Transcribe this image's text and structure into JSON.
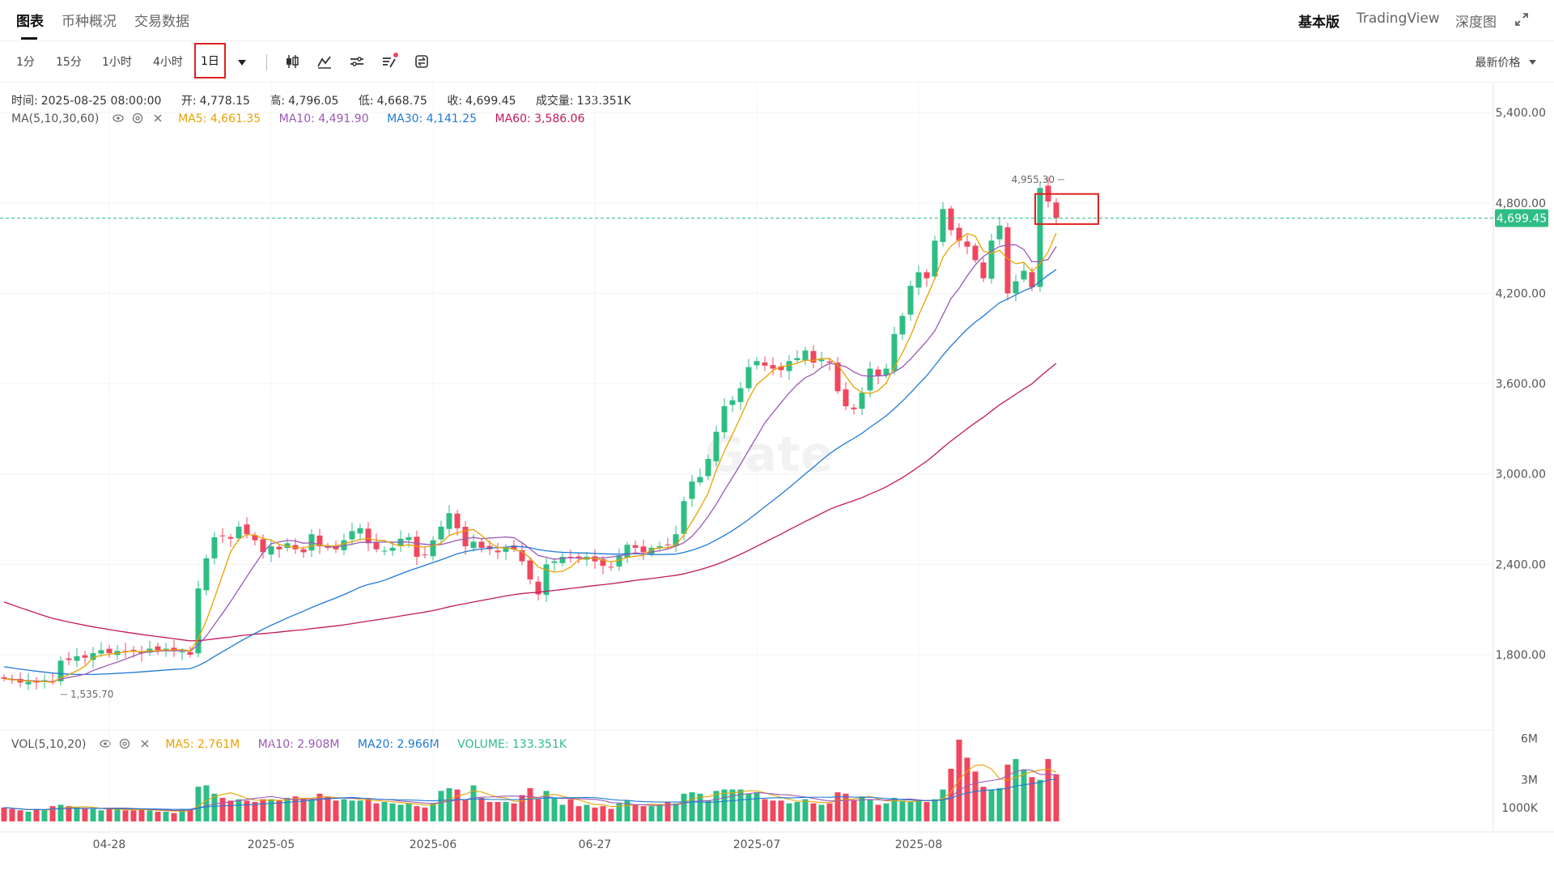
{
  "tabs": {
    "left": [
      "图表",
      "币种概况",
      "交易数据"
    ],
    "active": "图表",
    "right": [
      "基本版",
      "TradingView",
      "深度图"
    ],
    "right_active": "基本版"
  },
  "toolbar": {
    "intervals": [
      "1分",
      "15分",
      "1小时",
      "4小时",
      "1日"
    ],
    "selected_interval": "1日",
    "price_type": "最新价格",
    "icons": [
      "candlestick-icon",
      "indicator-icon",
      "settings-icon",
      "drawing-icon",
      "swap-icon"
    ]
  },
  "ohlc": {
    "time_label": "时间:",
    "time": "2025-08-25 08:00:00",
    "open_label": "开:",
    "open": "4,778.15",
    "high_label": "高:",
    "high": "4,796.05",
    "low_label": "低:",
    "low": "4,668.75",
    "close_label": "收:",
    "close": "4,699.45",
    "vol_label": "成交量:",
    "vol": "133.351K"
  },
  "ma_legend": {
    "name": "MA(5,10,30,60)",
    "ma5": "MA5: 4,661.35",
    "ma10": "MA10: 4,491.90",
    "ma30": "MA30: 4,141.25",
    "ma60": "MA60: 3,586.06"
  },
  "vol_legend": {
    "name": "VOL(5,10,20)",
    "ma5": "MA5: 2.761M",
    "ma10": "MA10: 2.908M",
    "ma20": "MA20: 2.966M",
    "volume": "VOLUME: 133.351K"
  },
  "colors": {
    "up": "#2ebd85",
    "down": "#f0475e",
    "ma5": "#e8a200",
    "ma10": "#9b59b6",
    "ma30": "#1e7ad6",
    "ma60": "#c2185b",
    "current_price_line": "#2ebd85"
  },
  "chart_data": {
    "type": "candlestick",
    "ylim": [
      1300,
      5600
    ],
    "y_ticks": [
      "5,400.00",
      "4,800.00",
      "4,200.00",
      "3,600.00",
      "3,000.00",
      "2,400.00",
      "1,800.00"
    ],
    "y_tick_values": [
      5400,
      4800,
      4200,
      3600,
      3000,
      2400,
      1800
    ],
    "x_labels": [
      "04-28",
      "2025-05",
      "2025-06",
      "06-27",
      "2025-07",
      "2025-08"
    ],
    "x_label_indices": [
      13,
      33,
      53,
      73,
      93,
      113
    ],
    "current_price": 4699.45,
    "current_price_label": "4,699.45",
    "max_label": "4,955.30",
    "max_value": 4955.3,
    "max_index": 131,
    "min_label": "1,535.70",
    "min_value": 1535.7,
    "min_index": 7,
    "vol_ticks": [
      "6M",
      "3M",
      "1000K"
    ],
    "vol_tick_values": [
      6,
      3,
      1
    ],
    "vol_ylim": [
      0,
      6.6
    ],
    "closes": [
      1640,
      1630,
      1615,
      1620,
      1615,
      1630,
      1620,
      1760,
      1765,
      1790,
      1780,
      1810,
      1830,
      1810,
      1825,
      1820,
      1830,
      1810,
      1840,
      1830,
      1840,
      1830,
      1820,
      1800,
      2240,
      2440,
      2580,
      2590,
      2570,
      2650,
      2600,
      2560,
      2480,
      2520,
      2500,
      2540,
      2500,
      2480,
      2600,
      2520,
      2510,
      2500,
      2560,
      2620,
      2640,
      2540,
      2500,
      2490,
      2510,
      2570,
      2580,
      2450,
      2460,
      2560,
      2650,
      2740,
      2640,
      2520,
      2550,
      2510,
      2500,
      2480,
      2510,
      2500,
      2420,
      2300,
      2200,
      2400,
      2420,
      2450,
      2440,
      2440,
      2450,
      2420,
      2390,
      2380,
      2460,
      2530,
      2510,
      2480,
      2510,
      2520,
      2530,
      2600,
      2820,
      2950,
      2980,
      3100,
      3280,
      3450,
      3490,
      3570,
      3710,
      3750,
      3720,
      3700,
      3690,
      3750,
      3770,
      3820,
      3740,
      3760,
      3740,
      3550,
      3450,
      3430,
      3540,
      3700,
      3650,
      3700,
      3930,
      4050,
      4250,
      4340,
      4300,
      4550,
      4760,
      4620,
      4550,
      4510,
      4420,
      4300,
      4550,
      4650,
      4200,
      4280,
      4350,
      4240,
      4900,
      4810,
      4700
    ],
    "volumes": [
      1.0,
      0.9,
      0.8,
      0.7,
      0.9,
      0.8,
      1.1,
      1.2,
      1.1,
      1.0,
      0.9,
      0.9,
      0.8,
      0.9,
      0.9,
      0.8,
      0.8,
      0.9,
      0.8,
      0.7,
      0.7,
      0.6,
      0.9,
      0.9,
      2.5,
      2.6,
      2.0,
      1.7,
      1.5,
      1.6,
      1.5,
      1.4,
      1.6,
      1.6,
      1.5,
      1.7,
      1.8,
      1.7,
      1.6,
      2.0,
      1.8,
      1.5,
      1.6,
      1.5,
      1.5,
      1.6,
      1.3,
      1.4,
      1.3,
      1.2,
      1.3,
      1.1,
      1.0,
      1.3,
      2.2,
      2.4,
      2.3,
      1.6,
      2.6,
      1.7,
      1.4,
      1.4,
      1.4,
      1.3,
      1.9,
      2.4,
      1.6,
      2.2,
      1.7,
      1.2,
      1.6,
      1.1,
      1.2,
      1.0,
      1.1,
      0.9,
      1.3,
      1.5,
      1.2,
      1.1,
      1.1,
      1.2,
      1.4,
      1.3,
      2.0,
      2.1,
      2.0,
      1.5,
      2.2,
      2.3,
      2.3,
      2.3,
      2.0,
      2.1,
      1.6,
      1.5,
      1.5,
      1.3,
      1.4,
      1.6,
      1.3,
      1.2,
      1.3,
      2.1,
      2.0,
      1.5,
      1.8,
      1.6,
      1.2,
      1.3,
      1.7,
      1.5,
      1.4,
      1.5,
      1.4,
      1.6,
      2.3,
      3.8,
      5.9,
      4.6,
      3.6,
      2.5,
      2.3,
      2.4,
      4.1,
      4.5,
      3.7,
      3.2,
      3.0,
      4.5,
      3.4,
      0.13
    ],
    "ma5": [
      1640,
      1634,
      1630,
      1625,
      1622,
      1622,
      1616,
      1645,
      1668,
      1693,
      1723,
      1781,
      1795,
      1802,
      1811,
      1819,
      1823,
      1819,
      1825,
      1826,
      1832,
      1830,
      1834,
      1824,
      1906,
      2026,
      2176,
      2330,
      2484,
      2566,
      2598,
      2594,
      2572,
      2562,
      2532,
      2520,
      2512,
      2508,
      2524,
      2528,
      2522,
      2522,
      2538,
      2550,
      2566,
      2572,
      2560,
      2558,
      2536,
      2522,
      2530,
      2520,
      2514,
      2524,
      2540,
      2592,
      2610,
      2622,
      2632,
      2592,
      2544,
      2512,
      2510,
      2500,
      2484,
      2442,
      2382,
      2364,
      2348,
      2354,
      2382,
      2430,
      2440,
      2440,
      2428,
      2416,
      2428,
      2446,
      2454,
      2460,
      2498,
      2510,
      2510,
      2528,
      2596,
      2684,
      2774,
      2874,
      3026,
      3152,
      3264,
      3378,
      3500,
      3594,
      3638,
      3688,
      3714,
      3722,
      3736,
      3756,
      3754,
      3766,
      3766,
      3724,
      3650,
      3576,
      3542,
      3534,
      3554,
      3604,
      3710,
      3806,
      3916,
      4054,
      4174,
      4298,
      4440,
      4514,
      4556,
      4598,
      4580,
      4480,
      4466,
      4486,
      4430,
      4396,
      4406,
      4344,
      4394,
      4476,
      4600
    ],
    "ma10": [
      1640,
      1637,
      1632,
      1628,
      1626,
      1623,
      1621,
      1637,
      1649,
      1658,
      1670,
      1694,
      1714,
      1733,
      1751,
      1770,
      1791,
      1811,
      1820,
      1823,
      1827,
      1825,
      1827,
      1823,
      1865,
      1925,
      2000,
      2075,
      2153,
      2236,
      2319,
      2399,
      2478,
      2537,
      2549,
      2559,
      2555,
      2540,
      2544,
      2530,
      2516,
      2515,
      2523,
      2534,
      2546,
      2547,
      2546,
      2549,
      2547,
      2548,
      2548,
      2538,
      2534,
      2529,
      2531,
      2545,
      2560,
      2570,
      2579,
      2570,
      2575,
      2578,
      2582,
      2577,
      2544,
      2502,
      2459,
      2446,
      2433,
      2440,
      2444,
      2441,
      2442,
      2442,
      2442,
      2449,
      2455,
      2466,
      2476,
      2470,
      2482,
      2490,
      2502,
      2521,
      2544,
      2586,
      2647,
      2719,
      2800,
      2891,
      2977,
      3065,
      3157,
      3248,
      3340,
      3407,
      3473,
      3538,
      3594,
      3640,
      3665,
      3707,
      3735,
      3727,
      3712,
      3678,
      3654,
      3649,
      3652,
      3654,
      3678,
      3711,
      3763,
      3823,
      3882,
      3951,
      4057,
      4165,
      4233,
      4316,
      4389,
      4445,
      4480,
      4511,
      4522,
      4522,
      4491,
      4410,
      4410,
      4426,
      4511
    ],
    "ma30": [
      1720,
      1712,
      1704,
      1697,
      1690,
      1684,
      1678,
      1674,
      1671,
      1669,
      1669,
      1669,
      1671,
      1673,
      1676,
      1679,
      1682,
      1686,
      1690,
      1694,
      1698,
      1702,
      1705,
      1707,
      1727,
      1755,
      1788,
      1820,
      1851,
      1883,
      1913,
      1941,
      1969,
      1995,
      2019,
      2044,
      2067,
      2089,
      2113,
      2135,
      2156,
      2177,
      2199,
      2223,
      2249,
      2266,
      2279,
      2294,
      2315,
      2336,
      2357,
      2375,
      2393,
      2412,
      2430,
      2450,
      2470,
      2484,
      2495,
      2502,
      2508,
      2511,
      2514,
      2519,
      2517,
      2510,
      2498,
      2490,
      2484,
      2480,
      2478,
      2476,
      2475,
      2472,
      2470,
      2468,
      2468,
      2470,
      2471,
      2468,
      2465,
      2465,
      2466,
      2468,
      2479,
      2494,
      2512,
      2534,
      2562,
      2592,
      2624,
      2660,
      2698,
      2740,
      2783,
      2824,
      2866,
      2910,
      2955,
      3001,
      3045,
      3091,
      3135,
      3172,
      3206,
      3237,
      3270,
      3311,
      3348,
      3387,
      3434,
      3484,
      3539,
      3597,
      3653,
      3720,
      3789,
      3850,
      3908,
      3962,
      4009,
      4049,
      4094,
      4138,
      4162,
      4190,
      4217,
      4238,
      4280,
      4321,
      4358
    ],
    "ma60": [
      2150,
      2131,
      2112,
      2094,
      2076,
      2058,
      2041,
      2029,
      2017,
      2006,
      1995,
      1985,
      1976,
      1967,
      1958,
      1950,
      1942,
      1934,
      1927,
      1920,
      1913,
      1906,
      1899,
      1892,
      1893,
      1898,
      1905,
      1911,
      1917,
      1925,
      1931,
      1936,
      1940,
      1945,
      1950,
      1956,
      1961,
      1966,
      1973,
      1979,
      1985,
      1991,
      1998,
      2006,
      2015,
      2023,
      2031,
      2039,
      2048,
      2057,
      2066,
      2074,
      2083,
      2093,
      2105,
      2118,
      2129,
      2139,
      2150,
      2160,
      2170,
      2180,
      2190,
      2199,
      2206,
      2211,
      2214,
      2221,
      2227,
      2233,
      2240,
      2246,
      2253,
      2259,
      2265,
      2271,
      2278,
      2286,
      2293,
      2300,
      2306,
      2313,
      2320,
      2327,
      2337,
      2351,
      2365,
      2381,
      2399,
      2420,
      2443,
      2467,
      2493,
      2520,
      2547,
      2574,
      2601,
      2630,
      2657,
      2685,
      2711,
      2738,
      2765,
      2786,
      2805,
      2823,
      2843,
      2867,
      2890,
      2915,
      2945,
      2976,
      3011,
      3049,
      3085,
      3129,
      3176,
      3219,
      3260,
      3301,
      3340,
      3377,
      3418,
      3460,
      3494,
      3530,
      3566,
      3599,
      3647,
      3692,
      3735
    ]
  }
}
